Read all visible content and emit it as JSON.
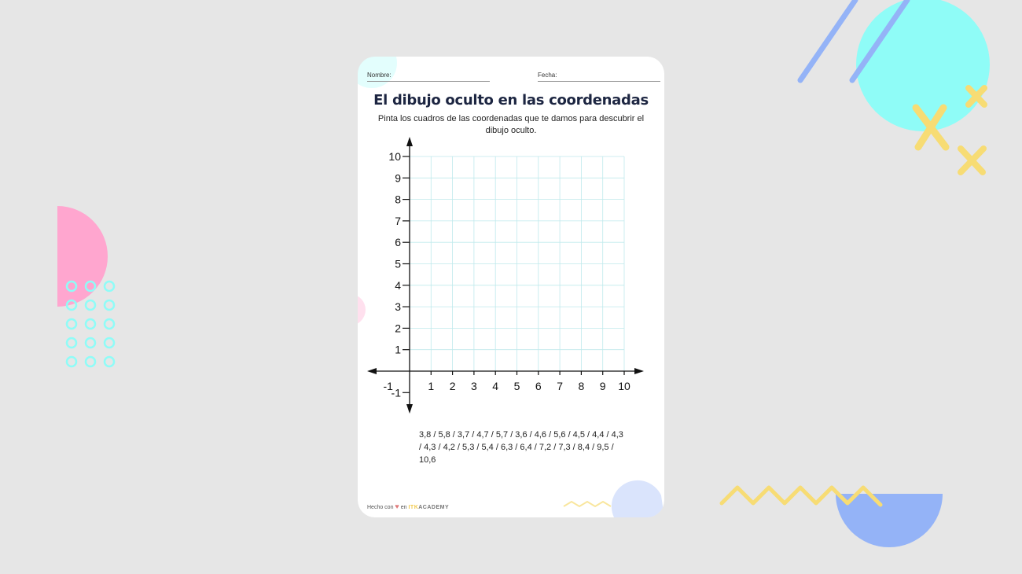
{
  "worksheet": {
    "name_label": "Nombre:",
    "date_label": "Fecha:",
    "title": "El dibujo oculto en las coordenadas",
    "instructions": "Pinta los cuadros de las coordenadas que te damos para descubrir el dibujo oculto.",
    "coordinates_text": "3,8 / 5,8 / 3,7 / 4,7 / 5,7 / 3,6 / 4,6 / 5,6 / 4,5 / 4,4 / 4,3 / 4,3 / 4,2 / 5,3 / 5,4 / 6,3 / 6,4 / 7,2 / 7,3 / 8,4 / 9,5 / 10,6",
    "footer": {
      "made_with": "Hecho con",
      "heart_icon": "heart-icon",
      "in": "en",
      "brand_prefix": "ITK",
      "brand_suffix": "ACADEMY"
    }
  },
  "chart_data": {
    "type": "coordinate-grid",
    "x_ticks": [
      "-1",
      "1",
      "2",
      "3",
      "4",
      "5",
      "6",
      "7",
      "8",
      "9",
      "10"
    ],
    "y_ticks": [
      "-1",
      "1",
      "2",
      "3",
      "4",
      "5",
      "6",
      "7",
      "8",
      "9",
      "10"
    ],
    "xlim": [
      -1,
      10
    ],
    "ylim": [
      -1,
      10
    ],
    "grid": true,
    "grid_color": "#bfe9ec",
    "axis_color": "#111111"
  },
  "colors": {
    "background": "#e6e6e6",
    "title": "#1c2541",
    "cyan": "#8ffcf7",
    "pink": "#ffa6cf",
    "blue": "#94b3f7",
    "yellow": "#f7dc74"
  }
}
